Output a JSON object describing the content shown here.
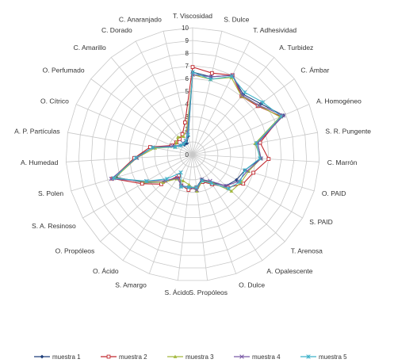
{
  "chart_data": {
    "type": "radar",
    "axes": [
      "T. Viscosidad",
      "S. Dulce",
      "T. Adhesividad",
      "A. Turbidez",
      "C. Ámbar",
      "A. Homogéneo",
      "S. R. Pungente",
      "C. Marrón",
      "O. PAID",
      "S. PAID",
      "T. Arenosa",
      "A. Opalescente",
      "O. Dulce",
      "S. Propóleos",
      "S. Ácido",
      "S. Amargo",
      "O. Ácido",
      "O. Propóleos",
      "S. A. Resinoso",
      "S. Polen",
      "A. Humedad",
      "A. P. Partículas",
      "O. Cítrico",
      "O. Perfumado",
      "C. Amarillo",
      "C. Dorado",
      "C. Anaranjado"
    ],
    "rlim": [
      0,
      10
    ],
    "ticks": [
      "0",
      "1",
      "2",
      "3",
      "4",
      "5",
      "6",
      "7",
      "8",
      "9",
      "10"
    ],
    "grid": true,
    "legend_position": "bottom",
    "series": [
      {
        "name": "muestra 1",
        "color": "#1f3f7a",
        "marker": "diamond",
        "values": [
          6.5,
          6.3,
          7.0,
          6.2,
          6.7,
          7.8,
          5.2,
          5.4,
          4.3,
          4.0,
          3.6,
          2.6,
          2.1,
          2.6,
          2.6,
          2.6,
          2.2,
          3.2,
          4.4,
          6.3,
          4.6,
          3.2,
          1.6,
          1.2,
          1.0,
          1.0,
          1.5
        ]
      },
      {
        "name": "muestra 2",
        "color": "#c0282e",
        "marker": "square",
        "values": [
          6.9,
          6.6,
          7.0,
          6.0,
          6.4,
          7.6,
          5.4,
          6.0,
          5.0,
          4.6,
          3.8,
          2.8,
          2.3,
          2.6,
          2.8,
          2.6,
          2.0,
          3.4,
          4.6,
          6.6,
          4.6,
          3.4,
          1.8,
          1.6,
          1.6,
          1.8,
          2.6
        ]
      },
      {
        "name": "muestra 3",
        "color": "#a4b93f",
        "marker": "triangle",
        "values": [
          6.3,
          6.1,
          6.8,
          6.0,
          6.5,
          7.5,
          5.0,
          5.4,
          4.6,
          4.4,
          4.2,
          2.6,
          2.2,
          2.9,
          2.4,
          2.2,
          2.3,
          3.2,
          4.3,
          6.4,
          4.4,
          3.0,
          1.5,
          1.6,
          1.8,
          1.6,
          2.0
        ]
      },
      {
        "name": "muestra 4",
        "color": "#7a5aa6",
        "marker": "cross",
        "values": [
          6.3,
          6.3,
          7.0,
          6.1,
          6.5,
          7.8,
          5.2,
          5.4,
          4.5,
          4.2,
          3.6,
          2.5,
          2.1,
          2.8,
          2.6,
          2.6,
          2.2,
          3.0,
          4.2,
          6.7,
          4.4,
          3.2,
          1.7,
          1.2,
          1.2,
          1.2,
          1.8
        ]
      },
      {
        "name": "muestra 5",
        "color": "#3fb2c9",
        "marker": "star",
        "values": [
          6.5,
          6.1,
          6.9,
          6.4,
          6.9,
          7.6,
          5.1,
          5.3,
          4.3,
          4.3,
          3.9,
          2.7,
          2.2,
          2.6,
          2.6,
          2.7,
          1.7,
          2.8,
          4.2,
          6.5,
          4.5,
          3.2,
          1.5,
          1.2,
          1.1,
          1.2,
          1.6
        ]
      }
    ]
  }
}
